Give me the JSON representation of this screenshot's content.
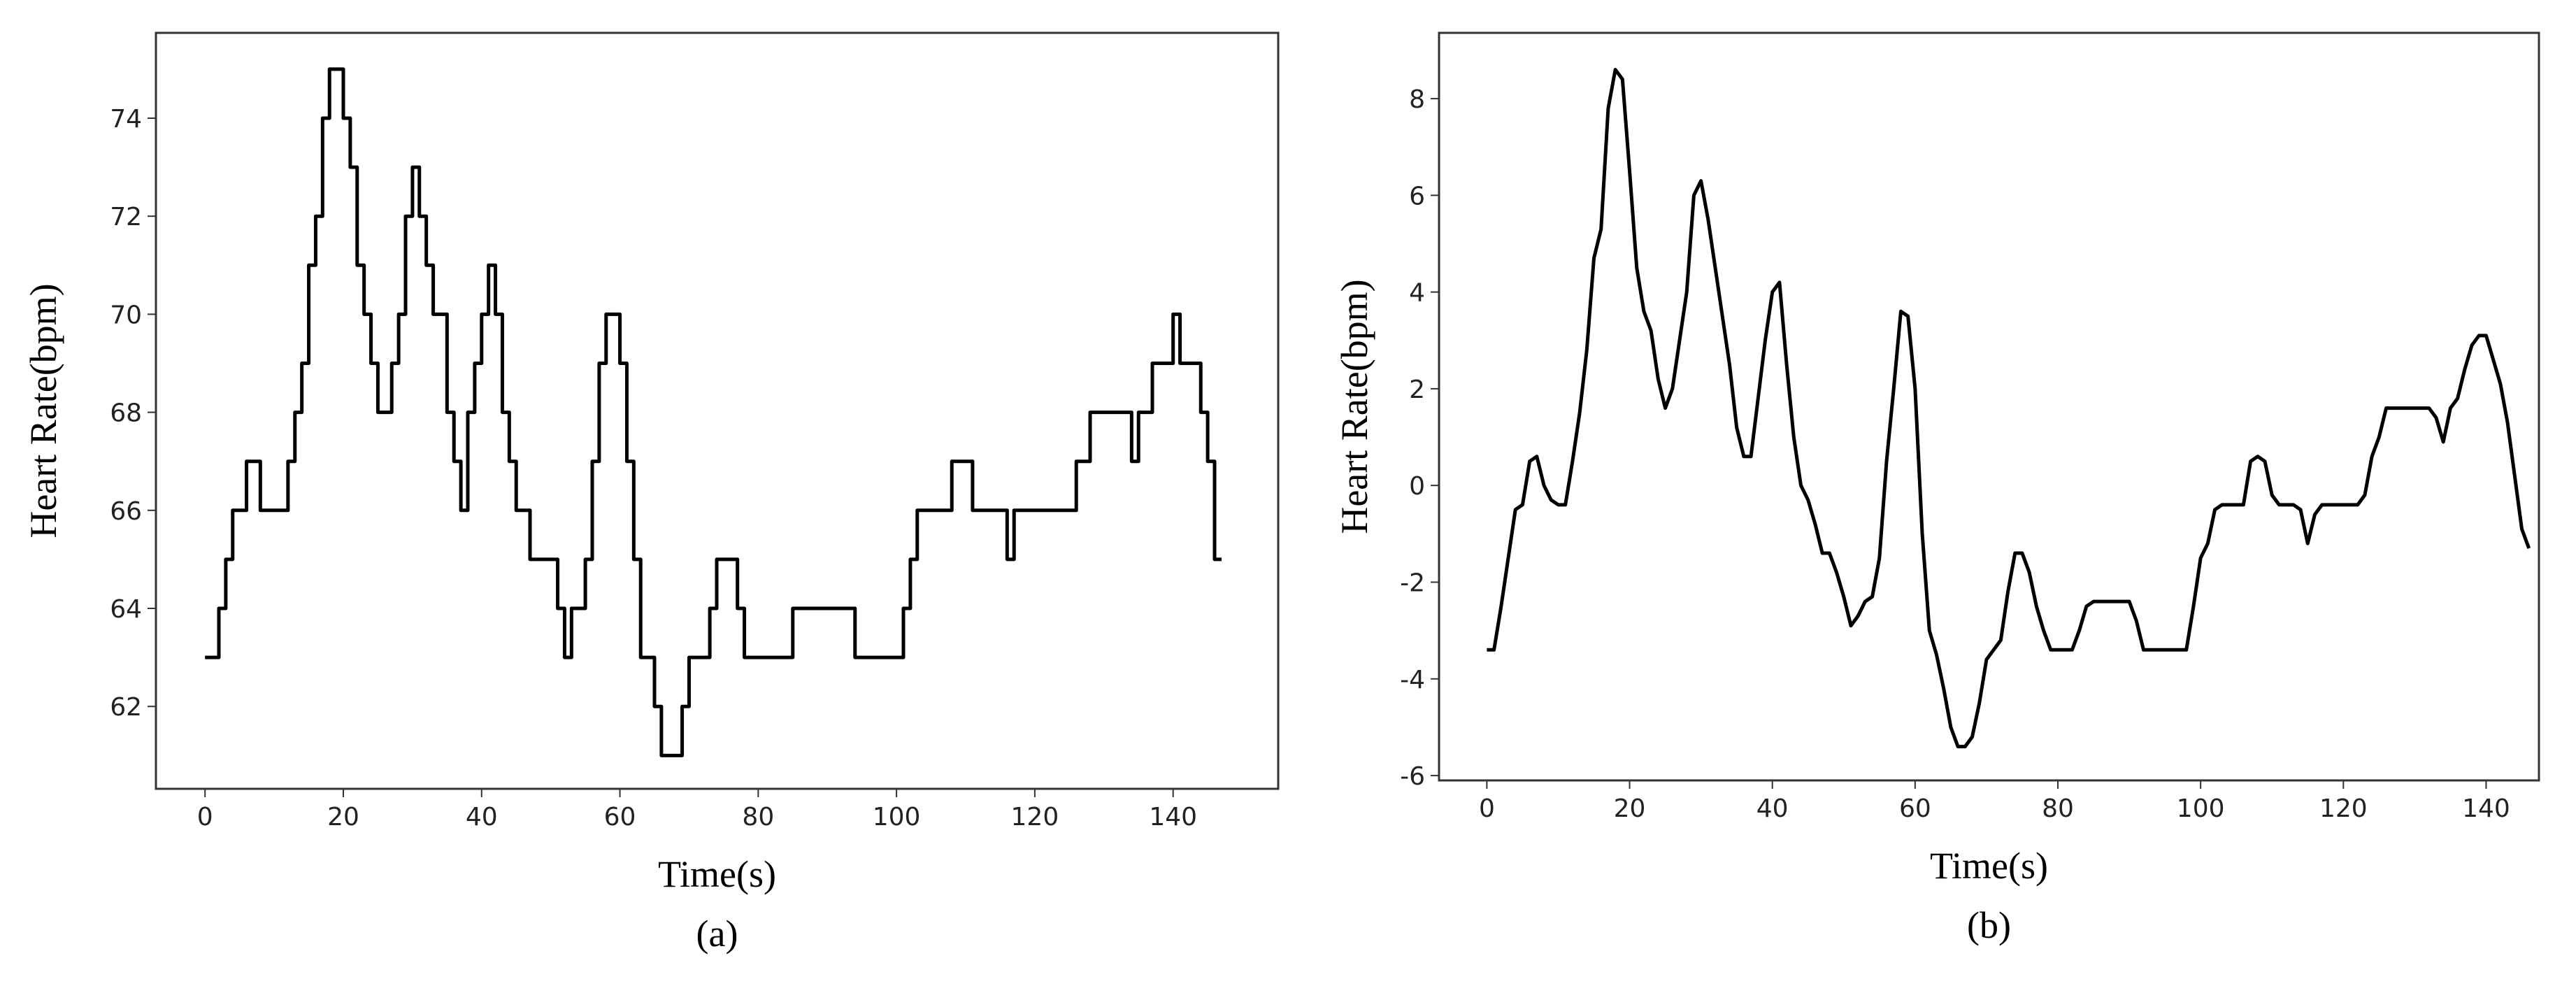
{
  "chart_data": [
    {
      "type": "line",
      "step": "post",
      "color": "#000000",
      "caption": "(a)",
      "x_label": "Time(s)",
      "y_label": "Heart Rate(bpm)",
      "xlim": [
        -7.1,
        155.2
      ],
      "ylim": [
        60.32,
        75.74
      ],
      "xticks": [
        0,
        20,
        40,
        60,
        80,
        100,
        120,
        140
      ],
      "yticks": [
        62,
        64,
        66,
        68,
        70,
        72,
        74
      ],
      "x": [
        0,
        2,
        3,
        4,
        6,
        8,
        12,
        13,
        14,
        15,
        16,
        17,
        18,
        20,
        21,
        22,
        23,
        24,
        25,
        27,
        28,
        29,
        30,
        31,
        32,
        33,
        35,
        36,
        37,
        38,
        39,
        40,
        41,
        42,
        43,
        44,
        45,
        47,
        51,
        52,
        53,
        55,
        56,
        57,
        58,
        60,
        61,
        62,
        63,
        65,
        66,
        69,
        70,
        73,
        74,
        77,
        78,
        85,
        94,
        101,
        102,
        103,
        108,
        111,
        116,
        117,
        126,
        128,
        134,
        135,
        137,
        140,
        141,
        144,
        145,
        146,
        147
      ],
      "series": [
        {
          "values": [
            63,
            64,
            65,
            66,
            67,
            66,
            67,
            68,
            69,
            71,
            72,
            74,
            75,
            74,
            73,
            71,
            70,
            69,
            68,
            69,
            70,
            72,
            73,
            72,
            71,
            70,
            68,
            67,
            66,
            68,
            69,
            70,
            71,
            70,
            68,
            67,
            66,
            65,
            64,
            63,
            64,
            65,
            67,
            69,
            70,
            69,
            67,
            65,
            63,
            62,
            61,
            62,
            63,
            64,
            65,
            64,
            63,
            64,
            63,
            64,
            65,
            66,
            67,
            66,
            65,
            66,
            67,
            68,
            67,
            68,
            69,
            70,
            69,
            68,
            67,
            65,
            65
          ]
        }
      ]
    },
    {
      "type": "line",
      "color": "#000000",
      "caption": "(b)",
      "x_label": "Time(s)",
      "y_label": "Heart Rate(bpm)",
      "xlim": [
        -6.7,
        147.4
      ],
      "ylim": [
        -6.1,
        9.36
      ],
      "xticks": [
        0,
        20,
        40,
        60,
        80,
        100,
        120,
        140
      ],
      "yticks": [
        -6,
        -4,
        -2,
        0,
        2,
        4,
        6,
        8
      ],
      "x": [
        0,
        1,
        2,
        3,
        4,
        5,
        6,
        7,
        8,
        9,
        10,
        11,
        12,
        13,
        14,
        15,
        16,
        17,
        18,
        19,
        20,
        21,
        22,
        23,
        24,
        25,
        26,
        27,
        28,
        29,
        30,
        31,
        32,
        33,
        34,
        35,
        36,
        37,
        38,
        39,
        40,
        41,
        42,
        43,
        44,
        45,
        46,
        47,
        48,
        49,
        50,
        51,
        52,
        53,
        54,
        55,
        56,
        57,
        58,
        59,
        60,
        61,
        62,
        63,
        64,
        65,
        66,
        67,
        68,
        69,
        70,
        71,
        72,
        73,
        74,
        75,
        76,
        77,
        78,
        79,
        82,
        83,
        84,
        85,
        90,
        91,
        92,
        98,
        99,
        100,
        101,
        102,
        103,
        106,
        107,
        108,
        109,
        110,
        111,
        113,
        114,
        115,
        116,
        117,
        122,
        123,
        124,
        125,
        126,
        132,
        133,
        134,
        135,
        136,
        137,
        138,
        139,
        140,
        141,
        142,
        143,
        144,
        145,
        146
      ],
      "series": [
        {
          "values": [
            -3.4,
            -3.4,
            -2.5,
            -1.5,
            -0.5,
            -0.4,
            0.5,
            0.6,
            0,
            -0.3,
            -0.4,
            -0.4,
            0.5,
            1.5,
            2.8,
            4.7,
            5.3,
            7.8,
            8.6,
            8.4,
            6.5,
            4.5,
            3.6,
            3.2,
            2.2,
            1.6,
            2.0,
            3.0,
            4.0,
            6.0,
            6.3,
            5.5,
            4.5,
            3.5,
            2.5,
            1.2,
            0.6,
            0.6,
            1.8,
            3.0,
            4.0,
            4.2,
            2.5,
            1,
            0,
            -0.3,
            -0.8,
            -1.4,
            -1.4,
            -1.8,
            -2.3,
            -2.9,
            -2.7,
            -2.4,
            -2.3,
            -1.5,
            0.5,
            2.0,
            3.6,
            3.5,
            2.0,
            -1.0,
            -3.0,
            -3.5,
            -4.2,
            -5.0,
            -5.4,
            -5.4,
            -5.2,
            -4.5,
            -3.6,
            -3.4,
            -3.2,
            -2.2,
            -1.4,
            -1.4,
            -1.8,
            -2.5,
            -3.0,
            -3.4,
            -3.4,
            -3.0,
            -2.5,
            -2.4,
            -2.4,
            -2.8,
            -3.4,
            -3.4,
            -2.5,
            -1.5,
            -1.2,
            -0.5,
            -0.4,
            -0.4,
            0.5,
            0.6,
            0.5,
            -0.2,
            -0.4,
            -0.4,
            -0.5,
            -1.2,
            -0.6,
            -0.4,
            -0.4,
            -0.2,
            0.6,
            1.0,
            1.6,
            1.6,
            1.4,
            0.9,
            1.6,
            1.8,
            2.4,
            2.9,
            3.1,
            3.1,
            2.6,
            2.1,
            1.3,
            0.2,
            -0.9,
            -1.3
          ]
        }
      ]
    }
  ]
}
